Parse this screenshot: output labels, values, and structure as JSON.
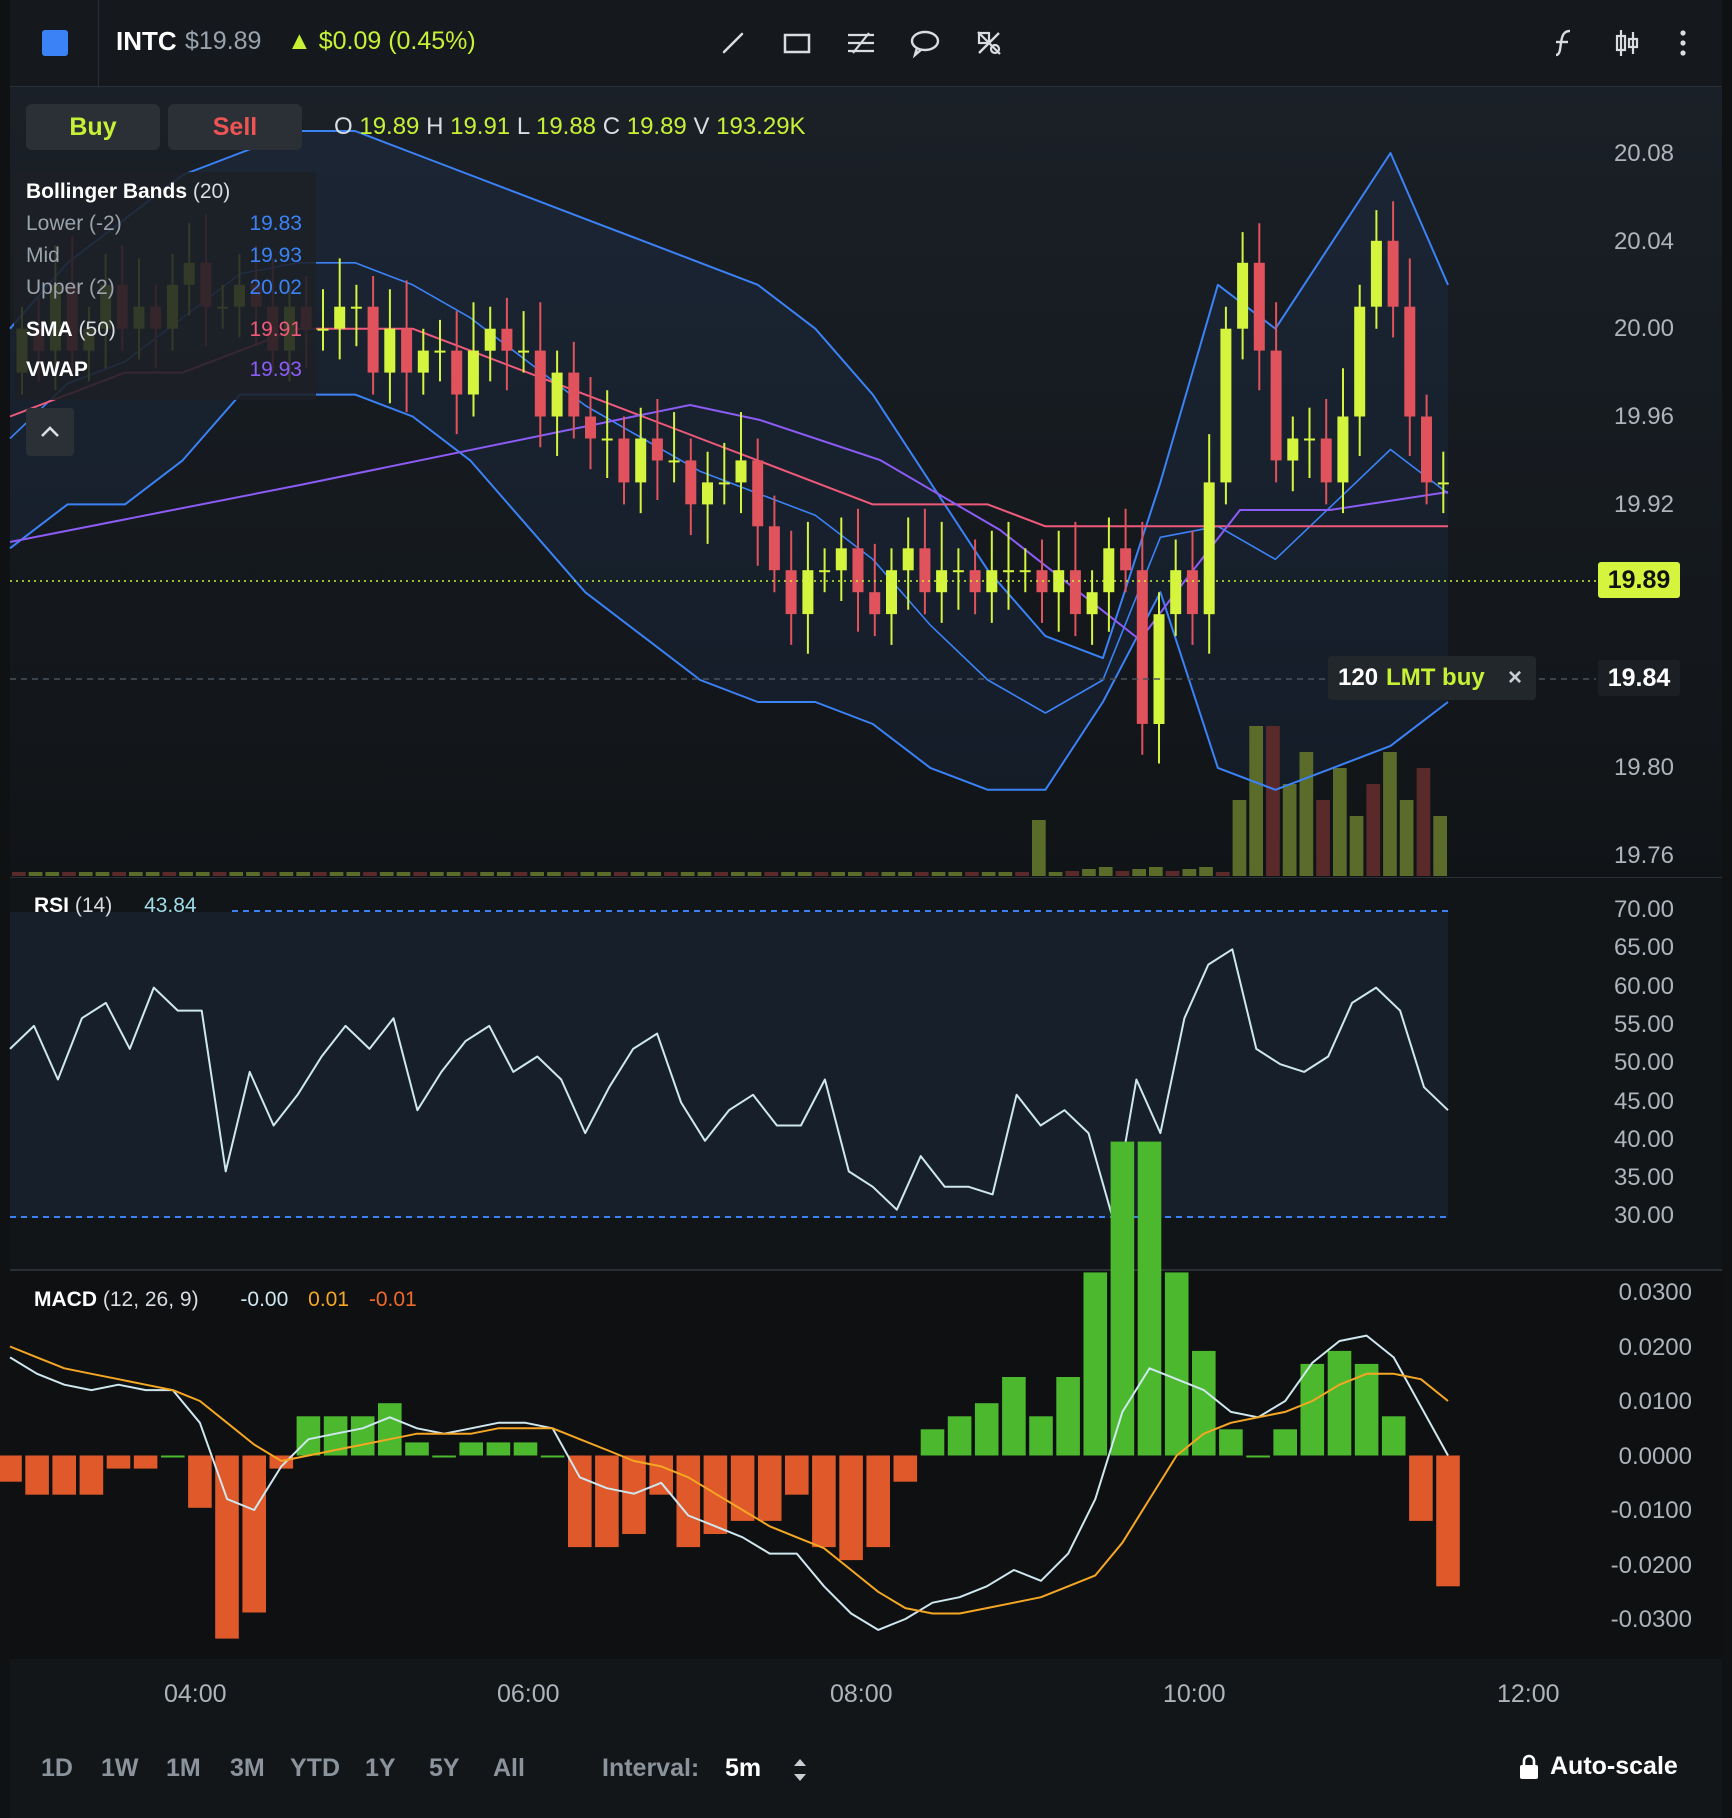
{
  "header": {
    "ticker": "INTC",
    "price": "$19.89",
    "change": "▲ $0.09 (0.45%)",
    "accent": "#3b82f6",
    "tools": [
      "trend-line-icon",
      "rectangle-icon",
      "fib-retracement-icon",
      "callout-icon",
      "remove-drawings-icon"
    ],
    "right_tools": [
      "indicators-icon",
      "chart-type-icon",
      "more-icon"
    ]
  },
  "trade": {
    "buy_label": "Buy",
    "sell_label": "Sell",
    "buy_color": "#c6f135",
    "sell_color": "#ef5454"
  },
  "ohlc": {
    "o_label": "O",
    "o": "19.89",
    "h_label": "H",
    "h": "19.91",
    "l_label": "L",
    "l": "19.88",
    "c_label": "C",
    "c": "19.89",
    "v_label": "V",
    "v": "193.29K"
  },
  "legend": {
    "bb_title": "Bollinger Bands",
    "bb_param": "(20)",
    "lower_label": "Lower (-2)",
    "lower_value": "19.83",
    "mid_label": "Mid",
    "mid_value": "19.93",
    "upper_label": "Upper (2)",
    "upper_value": "20.02",
    "sma_title": "SMA",
    "sma_param": "(50)",
    "sma_value": "19.91",
    "vwap_title": "VWAP",
    "vwap_value": "19.93",
    "colors": {
      "bb": "#3b82f6",
      "sma": "#ef5a7a",
      "vwap": "#8b5cf6"
    }
  },
  "price_axis": [
    "20.08",
    "20.04",
    "20.00",
    "19.96",
    "19.92",
    "19.80",
    "19.76"
  ],
  "last_price": "19.89",
  "order": {
    "price": "19.84",
    "qty": "120",
    "type": "LMT buy",
    "close": "×"
  },
  "rsi": {
    "title": "RSI",
    "param": "(14)",
    "value": "43.84",
    "axis": [
      "70.00",
      "65.00",
      "60.00",
      "55.00",
      "50.00",
      "45.00",
      "40.00",
      "35.00",
      "30.00"
    ]
  },
  "macd": {
    "title": "MACD",
    "param": "(12, 26, 9)",
    "macd_value": "-0.00",
    "signal_value": "0.01",
    "hist_value": "-0.01",
    "axis": [
      "0.0300",
      "0.0200",
      "0.0100",
      "0.0000",
      "-0.0100",
      "-0.0200",
      "-0.0300"
    ]
  },
  "time_axis": [
    "04:00",
    "06:00",
    "08:00",
    "10:00",
    "12:00"
  ],
  "ranges": [
    "1D",
    "1W",
    "1M",
    "3M",
    "YTD",
    "1Y",
    "5Y",
    "All"
  ],
  "interval": {
    "label": "Interval:",
    "value": "5m"
  },
  "autoscale": "Auto-scale",
  "chart_data": {
    "type": "candlestick",
    "interval": "5m",
    "time_range": [
      "03:00",
      "11:35"
    ],
    "ylim": [
      19.74,
      20.1
    ],
    "bb_upper": [
      20.0,
      20.03,
      20.05,
      20.07,
      20.08,
      20.09,
      20.09,
      20.08,
      20.07,
      20.06,
      20.05,
      20.04,
      20.03,
      20.02,
      20.0,
      19.97,
      19.93,
      19.89,
      19.86,
      19.85,
      19.93,
      20.02,
      20.0,
      20.04,
      20.08,
      20.02
    ],
    "bb_lower": [
      19.9,
      19.92,
      19.92,
      19.94,
      19.97,
      19.97,
      19.97,
      19.96,
      19.94,
      19.91,
      19.88,
      19.86,
      19.84,
      19.83,
      19.83,
      19.82,
      19.8,
      19.79,
      19.79,
      19.83,
      19.88,
      19.8,
      19.79,
      19.8,
      19.81,
      19.83
    ],
    "sma50": [
      19.96,
      19.97,
      19.98,
      19.98,
      19.99,
      20.0,
      20.0,
      20.0,
      19.99,
      19.98,
      19.97,
      19.96,
      19.95,
      19.94,
      19.93,
      19.92,
      19.92,
      19.92,
      19.91,
      19.91,
      19.91,
      19.91,
      19.91,
      19.91,
      19.91,
      19.91
    ],
    "rsi": [
      52,
      55,
      48,
      56,
      58,
      52,
      60,
      57,
      57,
      36,
      49,
      42,
      46,
      51,
      55,
      52,
      56,
      44,
      49,
      53,
      55,
      49,
      51,
      48,
      41,
      47,
      52,
      54,
      45,
      40,
      44,
      46,
      42,
      42,
      48,
      36,
      34,
      31,
      38,
      34,
      34,
      33,
      46,
      42,
      44,
      41,
      30,
      48,
      41,
      56,
      63,
      65,
      52,
      50,
      49,
      51,
      58,
      60,
      57,
      47,
      44
    ],
    "macd": [
      0.018,
      0.015,
      0.013,
      0.012,
      0.013,
      0.012,
      0.012,
      0.006,
      -0.008,
      -0.01,
      -0.002,
      0.003,
      0.004,
      0.005,
      0.007,
      0.005,
      0.004,
      0.005,
      0.006,
      0.006,
      0.005,
      -0.004,
      -0.006,
      -0.007,
      -0.005,
      -0.011,
      -0.013,
      -0.015,
      -0.018,
      -0.018,
      -0.024,
      -0.029,
      -0.032,
      -0.03,
      -0.027,
      -0.026,
      -0.024,
      -0.021,
      -0.023,
      -0.018,
      -0.008,
      0.008,
      0.016,
      0.014,
      0.012,
      0.008,
      0.007,
      0.01,
      0.017,
      0.021,
      0.022,
      0.018,
      0.009,
      0.0
    ],
    "signal": [
      0.02,
      0.018,
      0.016,
      0.015,
      0.014,
      0.013,
      0.012,
      0.01,
      0.006,
      0.002,
      -0.001,
      0.0,
      0.001,
      0.002,
      0.003,
      0.004,
      0.004,
      0.004,
      0.005,
      0.005,
      0.005,
      0.003,
      0.001,
      -0.001,
      -0.002,
      -0.004,
      -0.007,
      -0.01,
      -0.013,
      -0.015,
      -0.017,
      -0.021,
      -0.025,
      -0.028,
      -0.029,
      -0.029,
      -0.028,
      -0.027,
      -0.026,
      -0.024,
      -0.022,
      -0.016,
      -0.008,
      0.0,
      0.004,
      0.006,
      0.007,
      0.008,
      0.01,
      0.013,
      0.015,
      0.015,
      0.014,
      0.01
    ]
  }
}
